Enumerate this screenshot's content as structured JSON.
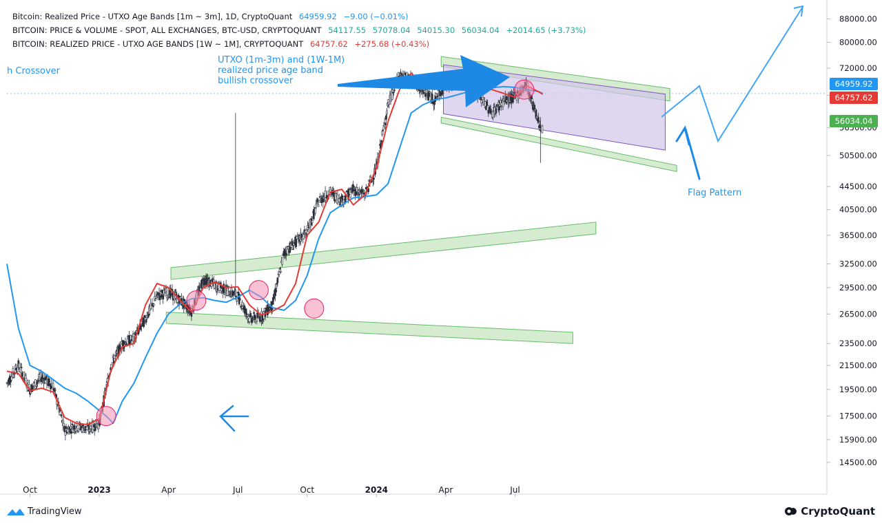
{
  "legend": {
    "line1": {
      "label": "Bitcoin: Realized Price - UTXO Age Bands [1m ~ 3m], 1D, CryptoQuant",
      "value": "64959.92",
      "change": "−9.00 (−0.01%)"
    },
    "line2": {
      "label": "BITCOIN: PRICE & VOLUME - SPOT, ALL EXCHANGES, BTC-USD, CRYPTOQUANT",
      "o": "54117.55",
      "h": "57078.04",
      "l": "54015.30",
      "c": "56034.04",
      "change": "+2014.65 (+3.73%)"
    },
    "line3": {
      "label": "BITCOIN: REALIZED PRICE - UTXO AGE BANDS [1W ~ 1M], CRYPTOQUANT",
      "value": "64757.62",
      "change": "+275.68 (+0.43%)"
    }
  },
  "price_tags": {
    "blue": "64959.92",
    "red": "64757.62",
    "green": "56034.04"
  },
  "annotations": {
    "crossover_left": "h Crossover",
    "utxo_line1": "UTXO (1m-3m) and (1W-1M)",
    "utxo_line2": "realized price age band",
    "utxo_line3": "bullish crossover",
    "flag": "Flag Pattern"
  },
  "footer": {
    "tradingview": "TradingView",
    "cryptoquant": "CryptoQuant"
  },
  "colors": {
    "blue": "#2196f3",
    "red": "#e53935",
    "green": "#26a69a",
    "candle": "#2a2e39",
    "channel_fill": "#c8e6c0",
    "flag_fill": "#d1c4e9"
  },
  "chart_data": {
    "type": "line",
    "title": "",
    "scale": "log",
    "y_ticks": [
      88000,
      80000,
      72000,
      64500,
      56500,
      50500,
      44500,
      40500,
      36500,
      32500,
      29500,
      26500,
      23500,
      21500,
      19500,
      17500,
      15900,
      14500
    ],
    "y_tick_labels": [
      "88000.00",
      "80000.00",
      "72000.00",
      "64500.00",
      "56500.00",
      "50500.00",
      "44500.00",
      "40500.00",
      "36500.00",
      "32500.00",
      "29500.00",
      "26500.00",
      "23500.00",
      "21500.00",
      "19500.00",
      "17500.00",
      "15900.00",
      "14500.00"
    ],
    "x_ticks": [
      "Oct",
      "2023",
      "Apr",
      "Jul",
      "Oct",
      "2024",
      "Apr",
      "Jul"
    ],
    "x_tick_months": [
      0,
      3,
      6,
      9,
      12,
      15,
      18,
      21
    ],
    "x_range_months": [
      -1,
      34.5
    ],
    "y_range": [
      13400,
      95000
    ],
    "series": [
      {
        "name": "Realized Price - UTXO Age Bands [1m ~ 3m]",
        "color": "#2196f3",
        "x": [
          -1,
          -0.5,
          0,
          0.5,
          1,
          1.5,
          2,
          2.5,
          3,
          3.3,
          3.6,
          4,
          4.5,
          5,
          5.5,
          6,
          6.5,
          7,
          7.5,
          8,
          8.5,
          9,
          9.5,
          10,
          10.5,
          11,
          11.5,
          12,
          12.5,
          13,
          13.5,
          14,
          14.5,
          15,
          15.5,
          16,
          16.5,
          17,
          17.5,
          18,
          18.5,
          19,
          19.5,
          20,
          20.5,
          21,
          21.5,
          22,
          22.2
        ],
        "values": [
          32500,
          25000,
          21500,
          21000,
          20300,
          19600,
          19200,
          18600,
          17900,
          17500,
          17000,
          18600,
          20000,
          22200,
          24500,
          26500,
          27600,
          28200,
          28300,
          28000,
          27800,
          28400,
          29200,
          28400,
          27200,
          26900,
          28000,
          31000,
          36000,
          40000,
          41300,
          42500,
          42700,
          43000,
          45000,
          52000,
          60000,
          62000,
          63300,
          63800,
          64600,
          65500,
          66200,
          66500,
          66800,
          66600,
          66000,
          65500,
          64959.92
        ]
      },
      {
        "name": "Realized Price - UTXO Age Bands [1W ~ 1M]",
        "color": "#e53935",
        "x": [
          -1,
          -0.5,
          0,
          0.5,
          1,
          1.5,
          2,
          2.5,
          3,
          3.5,
          4,
          4.5,
          5,
          5.5,
          6,
          6.5,
          7,
          7.5,
          8,
          8.5,
          9,
          9.5,
          10,
          10.5,
          11,
          11.5,
          12,
          12.5,
          13,
          13.5,
          14,
          14.5,
          15,
          15.5,
          16,
          16.5,
          17,
          17.5,
          18,
          18.5,
          19,
          19.5,
          20,
          20.5,
          21,
          21.5,
          22,
          22.2
        ],
        "values": [
          21000,
          20800,
          19400,
          19600,
          19300,
          17400,
          17000,
          16900,
          17300,
          21000,
          23200,
          23500,
          27500,
          30000,
          29500,
          28000,
          26700,
          29500,
          30200,
          29500,
          29600,
          27500,
          26400,
          26800,
          27500,
          30000,
          36500,
          38500,
          43500,
          44000,
          41300,
          43000,
          48000,
          58000,
          66000,
          70500,
          68000,
          66000,
          67500,
          68500,
          70000,
          68000,
          66000,
          65000,
          64000,
          67000,
          65500,
          64757.62
        ]
      },
      {
        "name": "Price (spot, all exchanges, BTC-USD)",
        "color": "#2a2e39",
        "x": [
          -1,
          -0.5,
          0,
          0.5,
          1,
          1.5,
          2,
          2.5,
          3,
          3.5,
          4,
          4.5,
          5,
          5.5,
          6,
          6.5,
          7,
          7.5,
          8,
          8.5,
          9,
          9.5,
          10,
          10.5,
          11,
          11.5,
          12,
          12.5,
          13,
          13.5,
          14,
          14.5,
          15,
          15.5,
          16,
          16.5,
          17,
          17.5,
          18,
          18.5,
          19,
          19.5,
          20,
          20.5,
          21,
          21.5,
          22,
          22.2
        ],
        "values": [
          20000,
          21500,
          19500,
          20500,
          19800,
          16500,
          16800,
          16600,
          17000,
          21500,
          23500,
          24000,
          26000,
          28500,
          29000,
          28000,
          26800,
          30500,
          29800,
          29200,
          28500,
          26000,
          26200,
          27500,
          34000,
          35500,
          37000,
          42000,
          43500,
          42000,
          44000,
          43000,
          48000,
          62000,
          70000,
          69000,
          66000,
          63000,
          67500,
          68500,
          69000,
          64000,
          60000,
          63000,
          64000,
          67500,
          58000,
          56034.04
        ]
      }
    ]
  }
}
